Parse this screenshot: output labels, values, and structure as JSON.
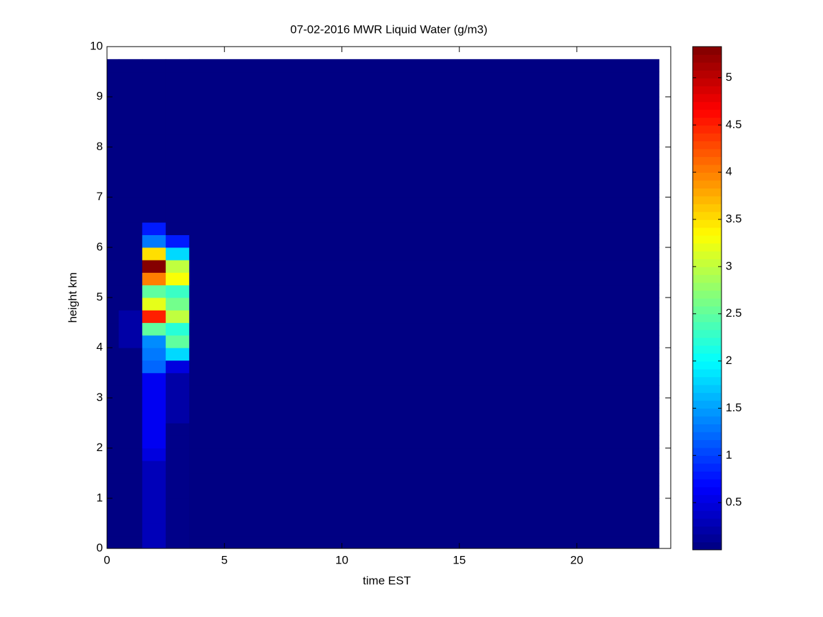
{
  "chart_data": {
    "type": "heatmap",
    "title": "07-02-2016 MWR Liquid Water (g/m3)",
    "x_label": "time EST",
    "y_label": "height km",
    "xlim": [
      0,
      24
    ],
    "ylim": [
      0,
      10
    ],
    "xticks": [
      0,
      5,
      10,
      15,
      20
    ],
    "yticks": [
      0,
      1,
      2,
      3,
      4,
      5,
      6,
      7,
      8,
      9,
      10
    ],
    "colormap": "jet",
    "clim": [
      0,
      5.33
    ],
    "cticks": [
      0.5,
      1,
      1.5,
      2,
      2.5,
      3,
      3.5,
      4,
      4.5,
      5
    ],
    "x_edges": [
      0,
      0.5,
      1.5,
      2.5,
      3.5,
      23.5
    ],
    "y_edges": [
      0,
      0.25,
      0.5,
      0.75,
      1,
      1.25,
      1.5,
      1.75,
      2,
      2.25,
      2.5,
      2.75,
      3,
      3.25,
      3.5,
      3.75,
      4,
      4.25,
      4.5,
      4.75,
      5,
      5.25,
      5.5,
      5.75,
      6,
      6.25,
      6.5,
      6.75,
      7,
      7.25,
      7.5,
      7.75,
      8,
      8.25,
      8.5,
      8.75,
      9,
      9.25,
      9.5,
      9.75
    ],
    "z": [
      [
        0.02,
        0.02,
        0.3,
        0.05,
        0.02
      ],
      [
        0.02,
        0.02,
        0.3,
        0.05,
        0.02
      ],
      [
        0.02,
        0.02,
        0.3,
        0.05,
        0.02
      ],
      [
        0.02,
        0.02,
        0.3,
        0.05,
        0.02
      ],
      [
        0.02,
        0.02,
        0.3,
        0.05,
        0.02
      ],
      [
        0.02,
        0.02,
        0.3,
        0.05,
        0.02
      ],
      [
        0.02,
        0.02,
        0.3,
        0.05,
        0.02
      ],
      [
        0.02,
        0.02,
        0.5,
        0.05,
        0.02
      ],
      [
        0.02,
        0.02,
        0.6,
        0.05,
        0.02
      ],
      [
        0.02,
        0.02,
        0.6,
        0.05,
        0.02
      ],
      [
        0.02,
        0.02,
        0.6,
        0.2,
        0.02
      ],
      [
        0.02,
        0.02,
        0.6,
        0.2,
        0.02
      ],
      [
        0.02,
        0.02,
        0.6,
        0.2,
        0.02
      ],
      [
        0.02,
        0.02,
        0.6,
        0.2,
        0.02
      ],
      [
        0.02,
        0.02,
        1.2,
        0.5,
        0.02
      ],
      [
        0.02,
        0.02,
        1.3,
        1.8,
        0.02
      ],
      [
        0.02,
        0.2,
        1.4,
        2.5,
        0.02
      ],
      [
        0.02,
        0.2,
        2.5,
        2.2,
        0.02
      ],
      [
        0.02,
        0.2,
        4.5,
        3.0,
        0.02
      ],
      [
        0.02,
        0.02,
        3.2,
        2.6,
        0.02
      ],
      [
        0.02,
        0.02,
        2.5,
        2.3,
        0.02
      ],
      [
        0.02,
        0.02,
        4.0,
        3.3,
        0.02
      ],
      [
        0.02,
        0.02,
        5.3,
        3.0,
        0.02
      ],
      [
        0.02,
        0.02,
        3.5,
        1.8,
        0.02
      ],
      [
        0.02,
        0.02,
        1.3,
        0.8,
        0.02
      ],
      [
        0.02,
        0.02,
        0.8,
        0.02,
        0.02
      ],
      [
        0.02,
        0.02,
        0.02,
        0.02,
        0.02
      ],
      [
        0.02,
        0.02,
        0.02,
        0.02,
        0.02
      ],
      [
        0.02,
        0.02,
        0.02,
        0.02,
        0.02
      ],
      [
        0.02,
        0.02,
        0.02,
        0.02,
        0.02
      ],
      [
        0.02,
        0.02,
        0.02,
        0.02,
        0.02
      ],
      [
        0.02,
        0.02,
        0.02,
        0.02,
        0.02
      ],
      [
        0.02,
        0.02,
        0.02,
        0.02,
        0.02
      ],
      [
        0.02,
        0.02,
        0.02,
        0.02,
        0.02
      ],
      [
        0.02,
        0.02,
        0.02,
        0.02,
        0.02
      ],
      [
        0.02,
        0.02,
        0.02,
        0.02,
        0.02
      ],
      [
        0.02,
        0.02,
        0.02,
        0.02,
        0.02
      ],
      [
        0.02,
        0.02,
        0.02,
        0.02,
        0.02
      ],
      [
        0.02,
        0.02,
        0.02,
        0.02,
        0.02
      ]
    ]
  }
}
